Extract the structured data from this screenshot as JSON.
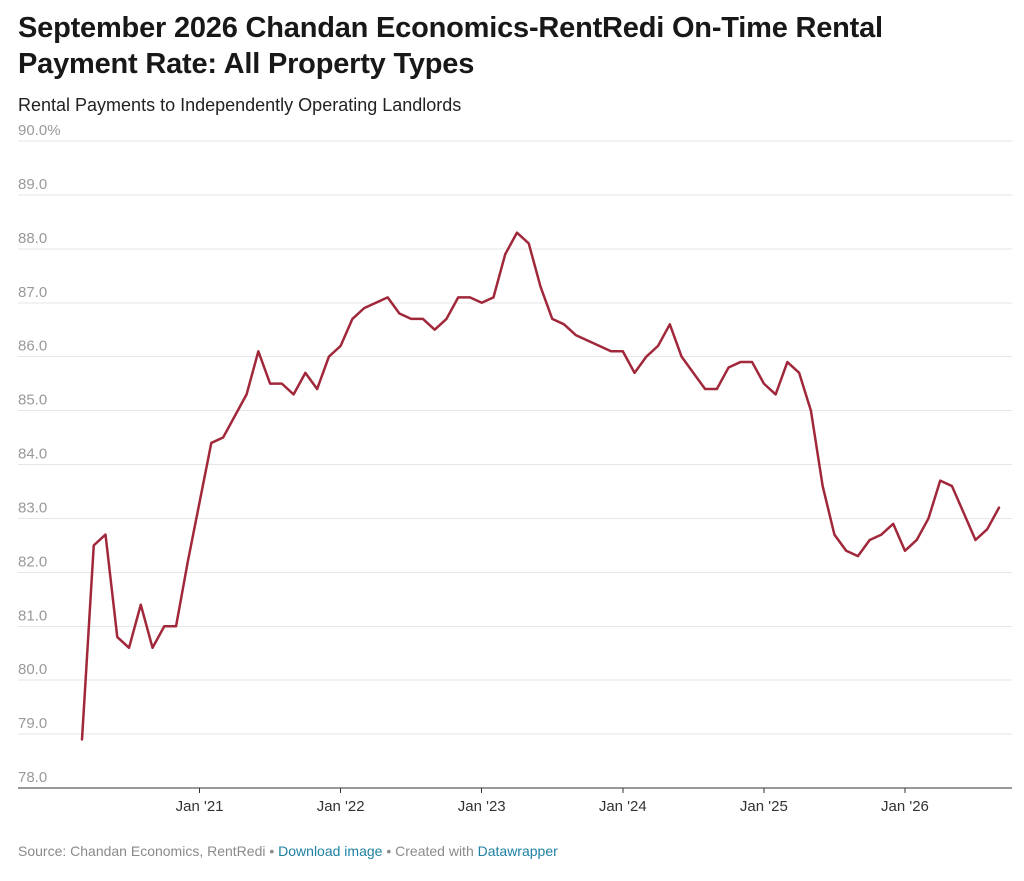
{
  "header": {
    "title": "September 2026 Chandan Economics-RentRedi On-Time Rental Payment Rate: All Property Types",
    "subtitle": "Rental Payments to Independently Operating Landlords"
  },
  "footer": {
    "source": "Source: Chandan Economics, RentRedi",
    "separator": " • ",
    "download_label": "Download image",
    "created_with": "Created with ",
    "datawrapper_label": "Datawrapper"
  },
  "colors": {
    "series_line": "#a0283a",
    "gridline": "#e6e6e6",
    "baseline": "#333333",
    "tick_label": "#999999",
    "x_tick_label": "#333333",
    "link": "#1d81a2"
  },
  "chart_data": {
    "type": "line",
    "title": "September 2026 Chandan Economics-RentRedi On-Time Rental Payment Rate: All Property Types",
    "subtitle": "Rental Payments to Independently Operating Landlords",
    "xlabel": "",
    "ylabel": "",
    "ylim": [
      78,
      90
    ],
    "y_ticks": [
      78,
      79,
      80,
      81,
      82,
      83,
      84,
      85,
      86,
      87,
      88,
      89,
      90
    ],
    "y_tick_labels": [
      "78.0",
      "79.0",
      "80.0",
      "81.0",
      "82.0",
      "83.0",
      "84.0",
      "85.0",
      "86.0",
      "87.0",
      "88.0",
      "89.0",
      "90.0%"
    ],
    "x_range": [
      "2020-03",
      "2026-09"
    ],
    "x_ticks": [
      "2021-01",
      "2022-01",
      "2023-01",
      "2024-01",
      "2025-01",
      "2026-01"
    ],
    "x_tick_labels": [
      "Jan '21",
      "Jan '22",
      "Jan '23",
      "Jan '24",
      "Jan '25",
      "Jan '26"
    ],
    "grid": true,
    "legend": "none",
    "series": [
      {
        "x": [
          "2020-03",
          "2020-04",
          "2020-05",
          "2020-06",
          "2020-07",
          "2020-08",
          "2020-09",
          "2020-10",
          "2020-11",
          "2020-12",
          "2021-01",
          "2021-02",
          "2021-03",
          "2021-04",
          "2021-05",
          "2021-06",
          "2021-07",
          "2021-08",
          "2021-09",
          "2021-10",
          "2021-11",
          "2021-12",
          "2022-01",
          "2022-02",
          "2022-03",
          "2022-04",
          "2022-05",
          "2022-06",
          "2022-07",
          "2022-08",
          "2022-09",
          "2022-10",
          "2022-11",
          "2022-12",
          "2023-01",
          "2023-02",
          "2023-03",
          "2023-04",
          "2023-05",
          "2023-06",
          "2023-07",
          "2023-08",
          "2023-09",
          "2023-10",
          "2023-11",
          "2023-12",
          "2024-01",
          "2024-02",
          "2024-03",
          "2024-04",
          "2024-05",
          "2024-06",
          "2024-07",
          "2024-08",
          "2024-09",
          "2024-10",
          "2024-11",
          "2024-12",
          "2025-01",
          "2025-02",
          "2025-03",
          "2025-04",
          "2025-05",
          "2025-06",
          "2025-07",
          "2025-08",
          "2025-09",
          "2025-10",
          "2025-11",
          "2025-12",
          "2026-01",
          "2026-02",
          "2026-03",
          "2026-04",
          "2026-05",
          "2026-06",
          "2026-07",
          "2026-08",
          "2026-09"
        ],
        "values": [
          78.9,
          82.5,
          82.7,
          80.8,
          80.6,
          81.4,
          80.6,
          81.0,
          81.0,
          82.2,
          83.3,
          84.4,
          84.5,
          84.9,
          85.3,
          86.1,
          85.5,
          85.5,
          85.3,
          85.7,
          85.4,
          86.0,
          86.2,
          86.7,
          86.9,
          87.0,
          87.1,
          86.8,
          86.7,
          86.7,
          86.5,
          86.7,
          87.1,
          87.1,
          87.0,
          87.1,
          87.9,
          88.3,
          88.1,
          87.3,
          86.7,
          86.6,
          86.4,
          86.3,
          86.2,
          86.1,
          86.1,
          85.7,
          86.0,
          86.2,
          86.6,
          86.0,
          85.7,
          85.4,
          85.4,
          85.8,
          85.9,
          85.9,
          85.5,
          85.3,
          85.9,
          85.7,
          85.0,
          83.6,
          82.7,
          82.4,
          82.3,
          82.6,
          82.7,
          82.9,
          82.4,
          82.6,
          83.0,
          83.7,
          83.6,
          83.1,
          82.6,
          82.8,
          83.2
        ]
      }
    ]
  }
}
